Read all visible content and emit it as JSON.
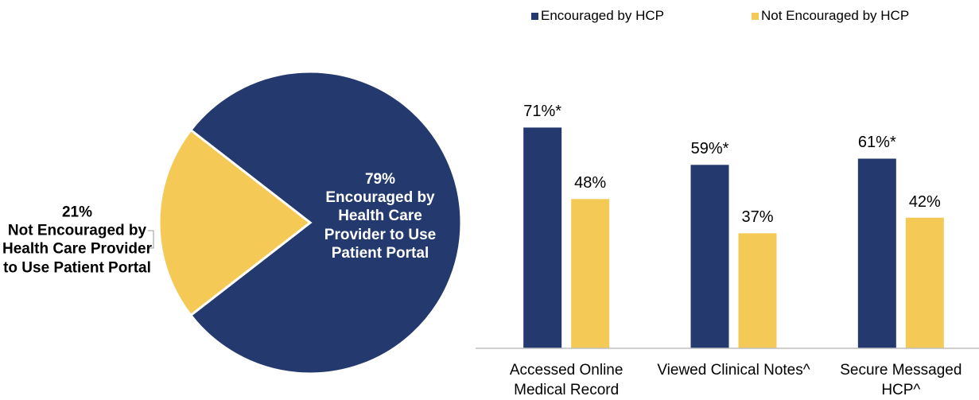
{
  "chart_data": [
    {
      "type": "pie",
      "categories": [
        "Encouraged by Health Care Provider to Use Patient Portal",
        "Not Encouraged by Health Care Provider to Use Patient Portal"
      ],
      "values": [
        79,
        21
      ],
      "value_labels": [
        "79%",
        "21%"
      ],
      "colors": [
        "#243a6e",
        "#f5c955"
      ]
    },
    {
      "type": "bar",
      "categories": [
        "Accessed Online Medical Record",
        "Viewed Clinical Notes^",
        "Secure Messaged HCP^"
      ],
      "series": [
        {
          "name": "Encouraged by HCP",
          "color": "#243a6e",
          "values": [
            71,
            59,
            61
          ],
          "value_labels": [
            "71%*",
            "59%*",
            "61%*"
          ]
        },
        {
          "name": "Not Encouraged by HCP",
          "color": "#f5c955",
          "values": [
            48,
            37,
            42
          ],
          "value_labels": [
            "48%",
            "37%",
            "42%"
          ]
        }
      ],
      "ylim": [
        0,
        100
      ]
    }
  ]
}
